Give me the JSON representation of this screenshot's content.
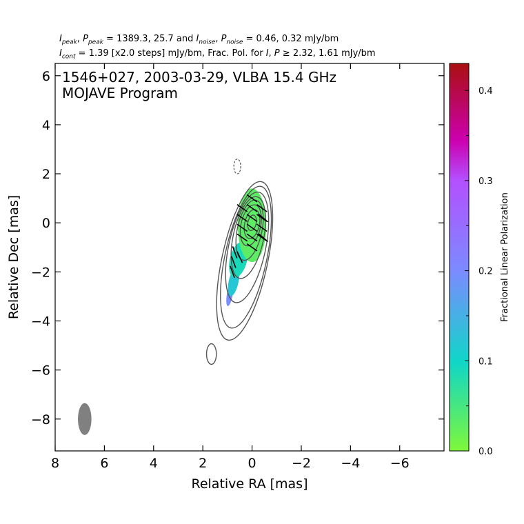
{
  "header": {
    "line1": {
      "v1": "1389.3, 25.7",
      "v2": "0.46, 0.32 mJy/bm"
    },
    "line2": {
      "v1": "1.39 [x2.0 steps] mJy/bm, Frac. Pol. for",
      "v2": "2.32, 1.61 mJy/bm"
    }
  },
  "chart_data": {
    "type": "contour",
    "title": "1546+027, 2003-03-29, VLBA 15.4 GHz",
    "subtitle": "MOJAVE Program",
    "xlabel": "Relative RA [mas]",
    "ylabel": "Relative Dec [mas]",
    "xlim": [
      8.0,
      -7.8
    ],
    "ylim": [
      -9.3,
      6.5
    ],
    "x_ticks": [
      8,
      6,
      4,
      2,
      0,
      -2,
      -4,
      -6
    ],
    "x_tick_labels": [
      "8",
      "6",
      "4",
      "2",
      "0",
      "−2",
      "−4",
      "−6"
    ],
    "y_ticks": [
      6,
      4,
      2,
      0,
      -2,
      -4,
      -6,
      -8
    ],
    "y_tick_labels": [
      "6",
      "4",
      "2",
      "0",
      "−2",
      "−4",
      "−6",
      "−8"
    ],
    "peak_intensity_mJy_per_beam": 1389.3,
    "peak_polarized_mJy_per_beam": 25.7,
    "noise_I_mJy_per_beam": 0.46,
    "noise_P_mJy_per_beam": 0.32,
    "lowest_contour_mJy_per_beam": 1.39,
    "contour_step_factor": 2.0,
    "frac_pol_threshold_I_mJy_per_beam": 2.32,
    "frac_pol_threshold_P_mJy_per_beam": 1.61,
    "beam": {
      "x": 6.8,
      "y": -8.0,
      "major_mas": 1.3,
      "minor_mas": 0.55,
      "pa_deg": 0
    },
    "negative_contour": {
      "x": 0.6,
      "y": 2.3
    },
    "isolated_component": {
      "x": 1.65,
      "y": -5.35
    },
    "colorbar": {
      "label": "Fractional Linear Polarization",
      "range": [
        0.0,
        0.43
      ],
      "ticks": [
        0.0,
        0.1,
        0.2,
        0.3,
        0.4
      ],
      "tick_labels": [
        "0.0",
        "0.1",
        "0.2",
        "0.3",
        "0.4"
      ],
      "colors": [
        "#7ff73a",
        "#0fd6c8",
        "#7a8cff",
        "#b44fff",
        "#cc00b0",
        "#aa0f10"
      ]
    },
    "polarization_regions": [
      {
        "x": 0.0,
        "y": -0.1,
        "frac": 0.03
      },
      {
        "x": 0.55,
        "y": -1.5,
        "frac": 0.09
      },
      {
        "x": 0.75,
        "y": -2.4,
        "frac": 0.12
      },
      {
        "x": 0.9,
        "y": -2.9,
        "frac": 0.2
      }
    ]
  }
}
